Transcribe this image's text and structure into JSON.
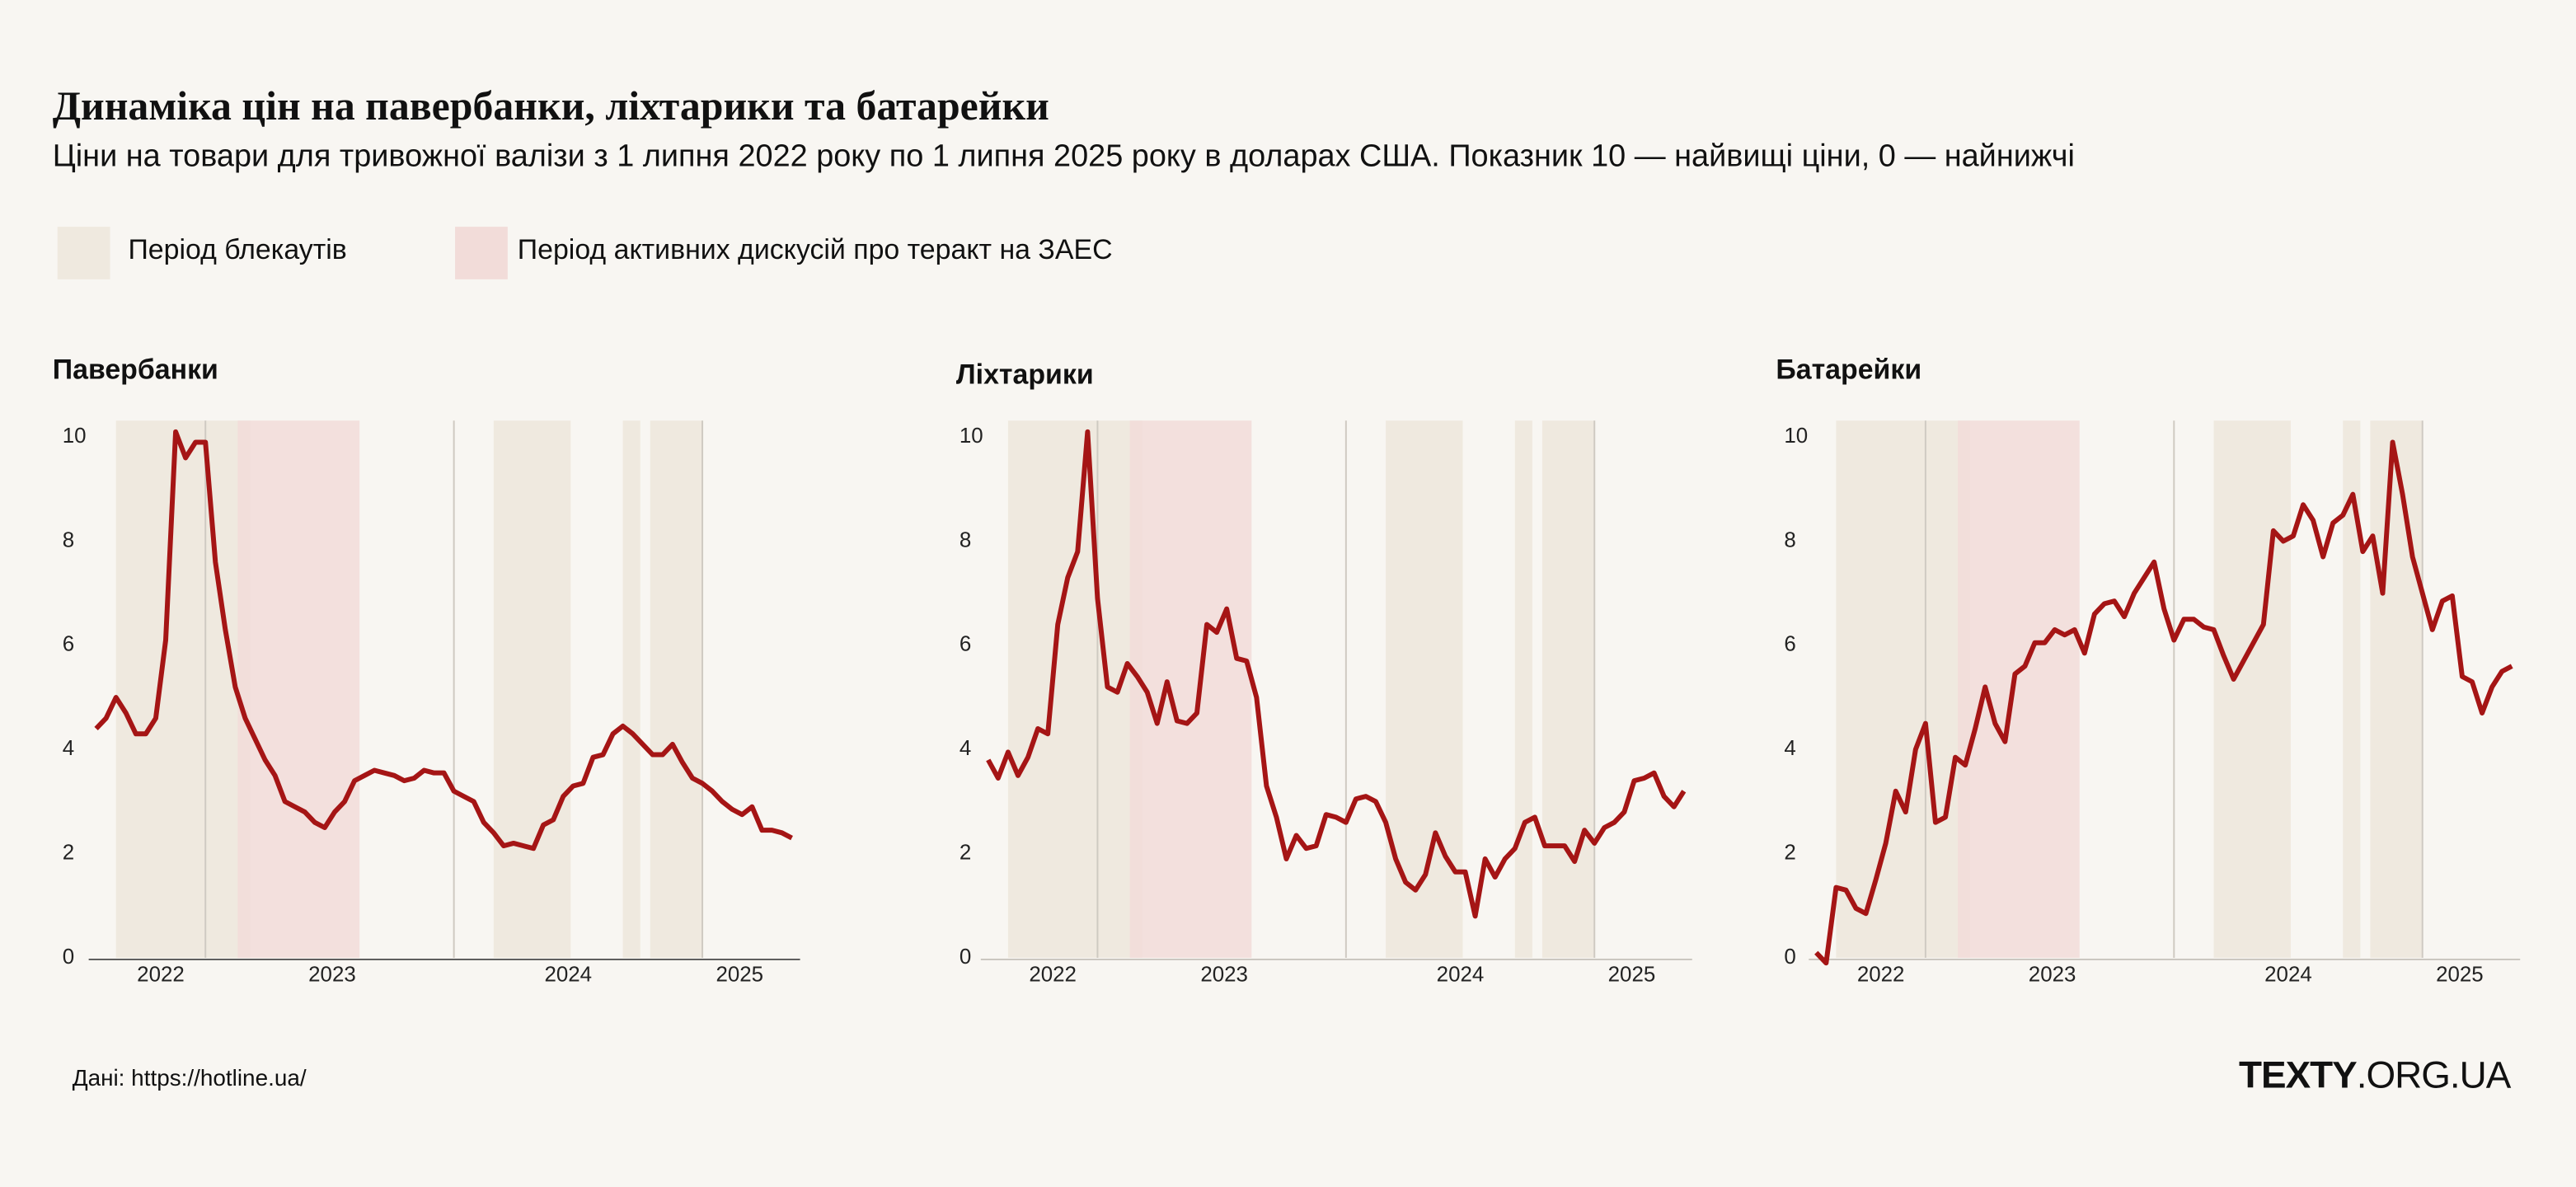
{
  "title": "Динаміка цін на павербанки, ліхтарики та батарейки",
  "subtitle": "Ціни на товари для тривожної валізи з 1 липня 2022 року по 1 липня 2025 року в доларах США. Показник 10 — найвищі ціни, 0 — найнижчі",
  "source": "Дані: https://hotline.ua/",
  "logo": {
    "bold": "TEXTY",
    "rest": ".ORG.UA"
  },
  "periods": [
    {
      "name": "Період  блекаутів",
      "color": "#efe9df",
      "ranges": [
        [
          2022.64,
          2023.18
        ],
        [
          2024.16,
          2024.47
        ],
        [
          2024.68,
          2024.75
        ],
        [
          2024.79,
          2025.0
        ]
      ]
    },
    {
      "name": "Період активних дискусій про теракт на ЗАЕС",
      "color": "#f2dcd9",
      "ranges": [
        [
          2023.13,
          2023.62
        ]
      ]
    }
  ],
  "chart_data": [
    {
      "type": "line",
      "title": "Павербанки",
      "color": "#a51515",
      "xlim": [
        2022.55,
        2025.38
      ],
      "ylim": [
        0,
        10
      ],
      "yticks": [
        0,
        2,
        4,
        6,
        8,
        10
      ],
      "year_lines": [
        2023,
        2024,
        2025
      ],
      "xticks": [
        {
          "value": 2022.82,
          "label": "2022"
        },
        {
          "value": 2023.51,
          "label": "2023"
        },
        {
          "value": 2024.46,
          "label": "2024"
        },
        {
          "value": 2025.15,
          "label": "2025"
        }
      ],
      "x": [
        2022.56,
        2022.6,
        2022.64,
        2022.68,
        2022.72,
        2022.76,
        2022.8,
        2022.84,
        2022.88,
        2022.92,
        2022.96,
        2023,
        2023.04,
        2023.08,
        2023.12,
        2023.16,
        2023.2,
        2023.24,
        2023.28,
        2023.32,
        2023.36,
        2023.4,
        2023.44,
        2023.48,
        2023.52,
        2023.56,
        2023.6,
        2023.64,
        2023.68,
        2023.72,
        2023.76,
        2023.8,
        2023.84,
        2023.88,
        2023.92,
        2023.96,
        2024,
        2024.04,
        2024.08,
        2024.12,
        2024.16,
        2024.2,
        2024.24,
        2024.28,
        2024.32,
        2024.36,
        2024.4,
        2024.44,
        2024.48,
        2024.52,
        2024.56,
        2024.6,
        2024.64,
        2024.68,
        2024.72,
        2024.76,
        2024.8,
        2024.84,
        2024.88,
        2024.92,
        2024.96,
        2025,
        2025.04,
        2025.08,
        2025.12,
        2025.16,
        2025.2,
        2025.24,
        2025.28,
        2025.32,
        2025.36
      ],
      "values": [
        4.4,
        4.6,
        5.0,
        4.7,
        4.3,
        4.3,
        4.6,
        6.1,
        10.1,
        9.6,
        9.9,
        9.9,
        7.6,
        6.3,
        5.2,
        4.6,
        4.2,
        3.8,
        3.5,
        3.0,
        2.9,
        2.8,
        2.6,
        2.5,
        2.8,
        3.0,
        3.4,
        3.5,
        3.6,
        3.55,
        3.5,
        3.4,
        3.45,
        3.6,
        3.55,
        3.55,
        3.2,
        3.1,
        3.0,
        2.6,
        2.4,
        2.15,
        2.2,
        2.15,
        2.1,
        2.55,
        2.65,
        3.1,
        3.3,
        3.35,
        3.85,
        3.9,
        4.3,
        4.45,
        4.3,
        4.1,
        3.9,
        3.9,
        4.1,
        3.75,
        3.45,
        3.35,
        3.2,
        3.0,
        2.85,
        2.75,
        2.9,
        2.45,
        2.45,
        2.4,
        2.3
      ]
    },
    {
      "type": "line",
      "title": "Ліхтарики",
      "color": "#a51515",
      "xlim": [
        2022.55,
        2025.38
      ],
      "ylim": [
        0,
        10
      ],
      "yticks": [
        0,
        2,
        4,
        6,
        8,
        10
      ],
      "year_lines": [
        2023,
        2024,
        2025
      ],
      "xticks": [
        {
          "value": 2022.82,
          "label": "2022"
        },
        {
          "value": 2023.51,
          "label": "2023"
        },
        {
          "value": 2024.46,
          "label": "2024"
        },
        {
          "value": 2025.15,
          "label": "2025"
        }
      ],
      "x": [
        2022.56,
        2022.6,
        2022.64,
        2022.68,
        2022.72,
        2022.76,
        2022.8,
        2022.84,
        2022.88,
        2022.92,
        2022.96,
        2023,
        2023.04,
        2023.08,
        2023.12,
        2023.16,
        2023.2,
        2023.24,
        2023.28,
        2023.32,
        2023.36,
        2023.4,
        2023.44,
        2023.48,
        2023.52,
        2023.56,
        2023.6,
        2023.64,
        2023.68,
        2023.72,
        2023.76,
        2023.8,
        2023.84,
        2023.88,
        2023.92,
        2023.96,
        2024,
        2024.04,
        2024.08,
        2024.12,
        2024.16,
        2024.2,
        2024.24,
        2024.28,
        2024.32,
        2024.36,
        2024.4,
        2024.44,
        2024.48,
        2024.52,
        2024.56,
        2024.6,
        2024.64,
        2024.68,
        2024.72,
        2024.76,
        2024.8,
        2024.84,
        2024.88,
        2024.92,
        2024.96,
        2025,
        2025.04,
        2025.08,
        2025.12,
        2025.16,
        2025.2,
        2025.24,
        2025.28,
        2025.32,
        2025.36
      ],
      "values": [
        3.8,
        3.45,
        3.95,
        3.5,
        3.85,
        4.4,
        4.3,
        6.4,
        7.3,
        7.8,
        10.1,
        6.9,
        5.2,
        5.1,
        5.65,
        5.4,
        5.1,
        4.5,
        5.3,
        4.55,
        4.5,
        4.7,
        6.4,
        6.25,
        6.7,
        5.75,
        5.7,
        5.0,
        3.3,
        2.7,
        1.9,
        2.35,
        2.1,
        2.15,
        2.75,
        2.7,
        2.6,
        3.05,
        3.1,
        3.0,
        2.6,
        1.9,
        1.45,
        1.3,
        1.6,
        2.4,
        1.95,
        1.65,
        1.65,
        0.8,
        1.9,
        1.55,
        1.9,
        2.1,
        2.6,
        2.7,
        2.15,
        2.15,
        2.15,
        1.85,
        2.45,
        2.2,
        2.5,
        2.6,
        2.8,
        3.4,
        3.45,
        3.55,
        3.1,
        2.9,
        3.2
      ]
    },
    {
      "type": "line",
      "title": "Батарейки",
      "color": "#a51515",
      "xlim": [
        2022.55,
        2025.38
      ],
      "ylim": [
        0,
        10
      ],
      "yticks": [
        0,
        2,
        4,
        6,
        8,
        10
      ],
      "year_lines": [
        2023,
        2024,
        2025
      ],
      "xticks": [
        {
          "value": 2022.82,
          "label": "2022"
        },
        {
          "value": 2023.51,
          "label": "2023"
        },
        {
          "value": 2024.46,
          "label": "2024"
        },
        {
          "value": 2025.15,
          "label": "2025"
        }
      ],
      "x": [
        2022.56,
        2022.6,
        2022.64,
        2022.68,
        2022.72,
        2022.76,
        2022.8,
        2022.84,
        2022.88,
        2022.92,
        2022.96,
        2023,
        2023.04,
        2023.08,
        2023.12,
        2023.16,
        2023.2,
        2023.24,
        2023.28,
        2023.32,
        2023.36,
        2023.4,
        2023.44,
        2023.48,
        2023.52,
        2023.56,
        2023.6,
        2023.64,
        2023.68,
        2023.72,
        2023.76,
        2023.8,
        2023.84,
        2023.88,
        2023.92,
        2023.96,
        2024,
        2024.04,
        2024.08,
        2024.12,
        2024.16,
        2024.2,
        2024.24,
        2024.28,
        2024.32,
        2024.36,
        2024.4,
        2024.44,
        2024.48,
        2024.52,
        2024.56,
        2024.6,
        2024.64,
        2024.68,
        2024.72,
        2024.76,
        2024.8,
        2024.84,
        2024.88,
        2024.92,
        2024.96,
        2025,
        2025.04,
        2025.08,
        2025.12,
        2025.16,
        2025.2,
        2025.24,
        2025.28,
        2025.32,
        2025.36
      ],
      "values": [
        0.1,
        -0.1,
        1.35,
        1.3,
        0.95,
        0.85,
        1.5,
        2.2,
        3.2,
        2.8,
        4.0,
        4.5,
        2.6,
        2.7,
        3.85,
        3.7,
        4.4,
        5.2,
        4.5,
        4.15,
        5.45,
        5.6,
        6.05,
        6.05,
        6.3,
        6.2,
        6.3,
        5.85,
        6.6,
        6.8,
        6.85,
        6.55,
        7.0,
        7.3,
        7.6,
        6.7,
        6.1,
        6.5,
        6.5,
        6.35,
        6.3,
        5.8,
        5.35,
        5.7,
        6.05,
        6.4,
        8.2,
        8.0,
        8.1,
        8.7,
        8.4,
        7.7,
        8.35,
        8.5,
        8.9,
        7.8,
        8.1,
        7.0,
        9.9,
        8.9,
        7.7,
        7.0,
        6.3,
        6.85,
        6.95,
        5.4,
        5.3,
        4.7,
        5.2,
        5.5,
        5.6
      ]
    }
  ]
}
